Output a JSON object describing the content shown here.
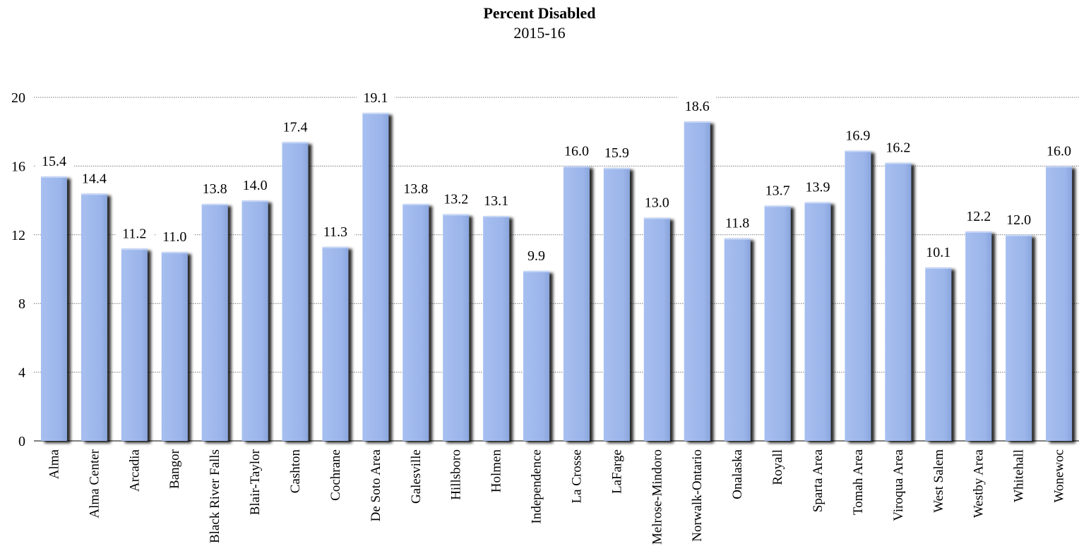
{
  "chart_data": {
    "type": "bar",
    "title": "Percent Disabled",
    "subtitle": "2015-16",
    "xlabel": "",
    "ylabel": "",
    "ylim": [
      0,
      20
    ],
    "yticks": [
      0,
      4,
      8,
      12,
      16,
      20
    ],
    "grid": true,
    "bar_color": "#9bb5ea",
    "shadow_color": "#3a3a3a",
    "categories": [
      "Alma",
      "Alma Center",
      "Arcadia",
      "Bangor",
      "Black River Falls",
      "Blair-Taylor",
      "Cashton",
      "Cochrane",
      "De Soto Area",
      "Galesville",
      "Hillsboro",
      "Holmen",
      "Independence",
      "La Crosse",
      "LaFarge",
      "Melrose-Mindoro",
      "Norwalk-Ontario",
      "Onalaska",
      "Royall",
      "Sparta Area",
      "Tomah Area",
      "Viroqua Area",
      "West Salem",
      "Westby Area",
      "Whitehall",
      "Wonewoc"
    ],
    "values": [
      15.4,
      14.4,
      11.2,
      11.0,
      13.8,
      14.0,
      17.4,
      11.3,
      19.1,
      13.8,
      13.2,
      13.1,
      9.9,
      16.0,
      15.9,
      13.0,
      18.6,
      11.8,
      13.7,
      13.9,
      16.9,
      16.2,
      10.1,
      12.2,
      12.0,
      16.0
    ],
    "value_labels": [
      "15.4",
      "14.4",
      "11.2",
      "11.0",
      "13.8",
      "14.0",
      "17.4",
      "11.3",
      "19.1",
      "13.8",
      "13.2",
      "13.1",
      "9.9",
      "16.0",
      "15.9",
      "13.0",
      "18.6",
      "11.8",
      "13.7",
      "13.9",
      "16.9",
      "16.2",
      "10.1",
      "12.2",
      "12.0",
      "16.0"
    ]
  }
}
